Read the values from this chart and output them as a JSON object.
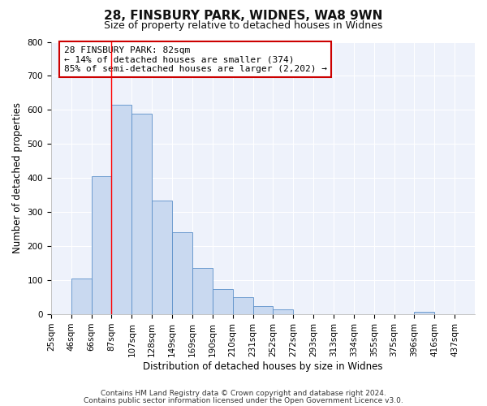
{
  "title1": "28, FINSBURY PARK, WIDNES, WA8 9WN",
  "title2": "Size of property relative to detached houses in Widnes",
  "xlabel": "Distribution of detached houses by size in Widnes",
  "ylabel": "Number of detached properties",
  "bin_labels": [
    "25sqm",
    "46sqm",
    "66sqm",
    "87sqm",
    "107sqm",
    "128sqm",
    "149sqm",
    "169sqm",
    "190sqm",
    "210sqm",
    "231sqm",
    "252sqm",
    "272sqm",
    "293sqm",
    "313sqm",
    "334sqm",
    "355sqm",
    "375sqm",
    "396sqm",
    "416sqm",
    "437sqm"
  ],
  "bar_heights": [
    0,
    105,
    405,
    615,
    590,
    335,
    240,
    135,
    75,
    50,
    25,
    15,
    0,
    0,
    0,
    0,
    0,
    0,
    7,
    0,
    0
  ],
  "bar_color": "#c9d9f0",
  "bar_edge_color": "#5b8fc9",
  "red_line_index": 3,
  "ylim": [
    0,
    800
  ],
  "yticks": [
    0,
    100,
    200,
    300,
    400,
    500,
    600,
    700,
    800
  ],
  "annotation_title": "28 FINSBURY PARK: 82sqm",
  "annotation_line1": "← 14% of detached houses are smaller (374)",
  "annotation_line2": "85% of semi-detached houses are larger (2,202) →",
  "annotation_box_color": "#ffffff",
  "annotation_box_edge": "#cc0000",
  "footer1": "Contains HM Land Registry data © Crown copyright and database right 2024.",
  "footer2": "Contains public sector information licensed under the Open Government Licence v3.0.",
  "background_color": "#ffffff",
  "plot_bg_color": "#eef2fb",
  "grid_color": "#ffffff",
  "title1_fontsize": 11,
  "title2_fontsize": 9,
  "axis_label_fontsize": 8.5,
  "tick_fontsize": 7.5,
  "annotation_fontsize": 8,
  "footer_fontsize": 6.5
}
